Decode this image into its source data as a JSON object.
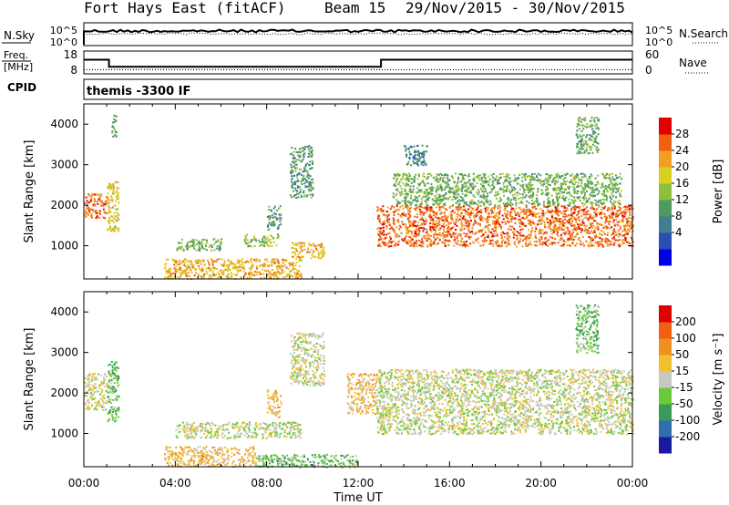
{
  "header": {
    "title": "Fort Hays East (fitACF)",
    "beam": "Beam 15",
    "dates": "29/Nov/2015 - 30/Nov/2015"
  },
  "nsky_panel": {
    "left_label": "N.Sky",
    "left_ticks": [
      "10^5",
      "10^0"
    ],
    "right_ticks": [
      "10^5",
      "10^0"
    ],
    "right_label": "N.Search"
  },
  "freq_panel": {
    "left_label_1": "Freq.",
    "left_label_2": "[MHz]",
    "left_ticks": [
      "18",
      "8"
    ],
    "right_ticks": [
      "60",
      "0"
    ],
    "right_label": "Nave",
    "freq_steps": [
      {
        "t0": 0.0,
        "t1": 1.1,
        "freq": 14.2
      },
      {
        "t0": 1.1,
        "t1": 13.0,
        "freq": 11.1
      },
      {
        "t0": 13.0,
        "t1": 24.0,
        "freq": 14.2
      }
    ],
    "nave_level": 11
  },
  "cpid": {
    "label": "CPID",
    "text": "themis -3300 IF"
  },
  "chart_data": [
    {
      "type": "heatmap",
      "name": "power",
      "xlabel": "",
      "ylabel": "Slant Range [km]",
      "xlim": [
        0,
        24
      ],
      "ylim": [
        180,
        4500
      ],
      "yticks": [
        1000,
        2000,
        3000,
        4000
      ],
      "colorbar": {
        "label": "Power [dB]",
        "range": [
          0,
          32
        ],
        "ticks": [
          "4",
          "8",
          "12",
          "16",
          "20",
          "24",
          "28"
        ],
        "colors": [
          "#0000e6",
          "#2a4fb0",
          "#3f7f8f",
          "#4f9a5f",
          "#8fbf3f",
          "#d8d020",
          "#f0a020",
          "#f06010",
          "#e00000"
        ]
      },
      "regions": [
        {
          "t0": 0.0,
          "t1": 1.0,
          "r0": 1700,
          "r1": 2300,
          "value": 26
        },
        {
          "t0": 1.0,
          "t1": 1.5,
          "r0": 1300,
          "r1": 2600,
          "value": 20
        },
        {
          "t0": 1.2,
          "t1": 1.4,
          "r0": 3700,
          "r1": 4300,
          "value": 12
        },
        {
          "t0": 3.5,
          "t1": 9.5,
          "r0": 200,
          "r1": 700,
          "value": 22
        },
        {
          "t0": 4.0,
          "t1": 6.0,
          "r0": 900,
          "r1": 1200,
          "value": 14
        },
        {
          "t0": 7.0,
          "t1": 8.5,
          "r0": 1000,
          "r1": 1300,
          "value": 16
        },
        {
          "t0": 8.0,
          "t1": 8.6,
          "r0": 1400,
          "r1": 2000,
          "value": 12
        },
        {
          "t0": 9.0,
          "t1": 10.5,
          "r0": 700,
          "r1": 1100,
          "value": 22
        },
        {
          "t0": 9.0,
          "t1": 10.0,
          "r0": 2200,
          "r1": 3500,
          "value": 12
        },
        {
          "t0": 12.8,
          "t1": 24.0,
          "r0": 1000,
          "r1": 2000,
          "value": 26
        },
        {
          "t0": 13.5,
          "t1": 23.5,
          "r0": 2000,
          "r1": 2800,
          "value": 14
        },
        {
          "t0": 14.0,
          "t1": 15.0,
          "r0": 3000,
          "r1": 3500,
          "value": 10
        },
        {
          "t0": 21.5,
          "t1": 22.5,
          "r0": 3300,
          "r1": 4200,
          "value": 14
        }
      ]
    },
    {
      "type": "heatmap",
      "name": "velocity",
      "xlabel": "Time UT",
      "ylabel": "Slant Range [km]",
      "xlim": [
        0,
        24
      ],
      "ylim": [
        180,
        4500
      ],
      "xticks": [
        "00:00",
        "04:00",
        "08:00",
        "12:00",
        "16:00",
        "20:00",
        "00:00"
      ],
      "yticks": [
        1000,
        2000,
        3000,
        4000
      ],
      "colorbar": {
        "label": "Velocity [m s⁻¹]",
        "range": [
          -250,
          250
        ],
        "ticks": [
          "200",
          "100",
          "50",
          "15",
          "-15",
          "-50",
          "-100",
          "-200"
        ],
        "colors": [
          "#1a1aa0",
          "#2f6fb0",
          "#3a9a5a",
          "#6acb3a",
          "#c8c8c0",
          "#f0c030",
          "#f09020",
          "#f06010",
          "#e00000"
        ]
      },
      "regions": [
        {
          "t0": 0.0,
          "t1": 1.0,
          "r0": 1600,
          "r1": 2500,
          "value": 0
        },
        {
          "t0": 1.0,
          "t1": 1.5,
          "r0": 1300,
          "r1": 2800,
          "value": -60
        },
        {
          "t0": 3.5,
          "t1": 7.5,
          "r0": 200,
          "r1": 700,
          "value": 60
        },
        {
          "t0": 4.0,
          "t1": 9.5,
          "r0": 900,
          "r1": 1300,
          "value": 0
        },
        {
          "t0": 7.5,
          "t1": 12.0,
          "r0": 180,
          "r1": 500,
          "value": -60
        },
        {
          "t0": 8.0,
          "t1": 8.6,
          "r0": 1400,
          "r1": 2100,
          "value": 60
        },
        {
          "t0": 9.0,
          "t1": 10.5,
          "r0": 2200,
          "r1": 3500,
          "value": 0
        },
        {
          "t0": 11.5,
          "t1": 12.8,
          "r0": 1500,
          "r1": 2500,
          "value": 60
        },
        {
          "t0": 12.8,
          "t1": 24.0,
          "r0": 1000,
          "r1": 2600,
          "value": 0
        },
        {
          "t0": 21.5,
          "t1": 22.5,
          "r0": 3000,
          "r1": 4200,
          "value": -60
        }
      ]
    }
  ]
}
